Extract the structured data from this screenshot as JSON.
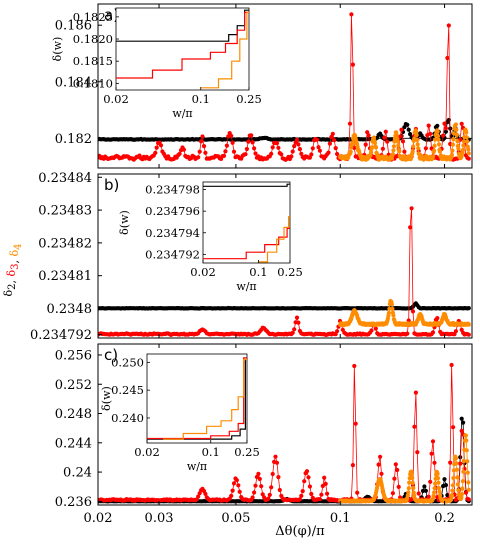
{
  "figure": {
    "xlabel": "Δθ(φ)/π",
    "ylabel_parts": [
      {
        "text": "δ",
        "sub": "2",
        "color": "#000000"
      },
      {
        "text": ", ",
        "sub": "",
        "color": "#000000"
      },
      {
        "text": "δ",
        "sub": "3",
        "color": "#ff0000"
      },
      {
        "text": ", ",
        "sub": "",
        "color": "#000000"
      },
      {
        "text": "δ",
        "sub": "4",
        "color": "#ff8c00"
      }
    ],
    "x_ticks": [
      "0.02",
      "0.03",
      "0.05",
      "0.1",
      "0.2"
    ],
    "colors": {
      "delta2": "#000000",
      "delta3": "#ff0000",
      "delta4": "#ff8c00"
    }
  },
  "chart_data": [
    {
      "panel_label": "a)",
      "type": "scatter",
      "x_scale": "log",
      "xlim": [
        0.02,
        0.24
      ],
      "ylim": [
        0.18095,
        0.18675
      ],
      "y_ticks": [
        "0.186",
        "0.184",
        "0.182"
      ],
      "y_tick_values": [
        0.186,
        0.184,
        0.182
      ],
      "series": [
        {
          "key": "delta2",
          "color": "#000000",
          "start": 0.02,
          "end": 0.235,
          "base": 0.18195,
          "noise": 4e-05,
          "peaks": [
            [
              0.06,
              6e-05,
              0.04
            ],
            [
              0.13,
              0.0002,
              0.02
            ],
            [
              0.155,
              0.00055,
              0.03
            ],
            [
              0.17,
              0.0002,
              0.02
            ],
            [
              0.19,
              0.0005,
              0.02
            ],
            [
              0.205,
              0.0007,
              0.02
            ],
            [
              0.215,
              0.0004,
              0.015
            ]
          ]
        },
        {
          "key": "delta3",
          "color": "#ff0000",
          "start": 0.02,
          "end": 0.235,
          "base": 0.18125,
          "noise": 0.0002,
          "peaks": [
            [
              0.03,
              0.0006,
              0.03
            ],
            [
              0.035,
              0.0004,
              0.02
            ],
            [
              0.04,
              0.0007,
              0.02
            ],
            [
              0.048,
              0.0009,
              0.03
            ],
            [
              0.055,
              0.0008,
              0.03
            ],
            [
              0.065,
              0.0006,
              0.03
            ],
            [
              0.075,
              0.0006,
              0.03
            ],
            [
              0.085,
              0.0007,
              0.03
            ],
            [
              0.095,
              0.0008,
              0.03
            ],
            [
              0.108,
              0.0055,
              0.012
            ],
            [
              0.12,
              0.0009,
              0.02
            ],
            [
              0.135,
              0.0009,
              0.02
            ],
            [
              0.15,
              0.001,
              0.02
            ],
            [
              0.165,
              0.001,
              0.02
            ],
            [
              0.18,
              0.0012,
              0.02
            ],
            [
              0.2,
              0.0012,
              0.02
            ],
            [
              0.205,
              0.0055,
              0.01
            ],
            [
              0.225,
              0.0012,
              0.02
            ]
          ]
        },
        {
          "key": "delta4",
          "color": "#ff8c00",
          "start": 0.1,
          "end": 0.235,
          "base": 0.18125,
          "noise": 0.00018,
          "peaks": [
            [
              0.11,
              0.0008,
              0.03
            ],
            [
              0.125,
              0.0007,
              0.02
            ],
            [
              0.145,
              0.0009,
              0.02
            ],
            [
              0.165,
              0.001,
              0.02
            ],
            [
              0.19,
              0.001,
              0.02
            ],
            [
              0.215,
              0.0012,
              0.02
            ],
            [
              0.23,
              0.001,
              0.02
            ]
          ]
        }
      ],
      "inset": {
        "ylabel": "δ(w)",
        "xlabel": "w/π",
        "x_ticks": [
          "0.02",
          "0.1",
          "0.25"
        ],
        "y_ticks": [
          "0.1825",
          "0.1820",
          "0.1815",
          "0.1810"
        ],
        "y_tick_values": [
          0.1825,
          0.182,
          0.1815,
          0.181
        ],
        "xlim": [
          0.02,
          0.25
        ],
        "ylim": [
          0.18085,
          0.1827
        ],
        "lines": [
          {
            "key": "delta2",
            "color": "#000000",
            "points": [
              [
                0.02,
                0.18195
              ],
              [
                0.17,
                0.18195
              ],
              [
                0.17,
                0.1821
              ],
              [
                0.2,
                0.1821
              ],
              [
                0.2,
                0.1823
              ],
              [
                0.23,
                0.1823
              ],
              [
                0.23,
                0.18265
              ],
              [
                0.25,
                0.18265
              ]
            ]
          },
          {
            "key": "delta3",
            "color": "#ff0000",
            "points": [
              [
                0.02,
                0.18112
              ],
              [
                0.04,
                0.18112
              ],
              [
                0.04,
                0.1813
              ],
              [
                0.07,
                0.1813
              ],
              [
                0.07,
                0.18155
              ],
              [
                0.12,
                0.18155
              ],
              [
                0.12,
                0.1817
              ],
              [
                0.16,
                0.1817
              ],
              [
                0.16,
                0.1819
              ],
              [
                0.2,
                0.1819
              ],
              [
                0.2,
                0.1822
              ],
              [
                0.23,
                0.1822
              ],
              [
                0.23,
                0.1826
              ],
              [
                0.25,
                0.1826
              ]
            ]
          },
          {
            "key": "delta4",
            "color": "#ff8c00",
            "points": [
              [
                0.1,
                0.1809
              ],
              [
                0.14,
                0.1809
              ],
              [
                0.14,
                0.1811
              ],
              [
                0.18,
                0.1811
              ],
              [
                0.18,
                0.1815
              ],
              [
                0.21,
                0.1815
              ],
              [
                0.21,
                0.182
              ],
              [
                0.24,
                0.182
              ],
              [
                0.24,
                0.1826
              ],
              [
                0.25,
                0.1826
              ]
            ]
          }
        ]
      }
    },
    {
      "panel_label": "b)",
      "type": "scatter",
      "x_scale": "log",
      "xlim": [
        0.02,
        0.24
      ],
      "ylim": [
        0.234791,
        0.234841
      ],
      "y_ticks": [
        "0.23484",
        "0.23483",
        "0.23482",
        "0.23481",
        "0.2348",
        "0.234792"
      ],
      "y_tick_values": [
        0.23484,
        0.23483,
        0.23482,
        0.23481,
        0.2348,
        0.234792
      ],
      "series": [
        {
          "key": "delta2",
          "color": "#000000",
          "start": 0.02,
          "end": 0.235,
          "base": 0.2348,
          "noise": 2e-07,
          "peaks": [
            [
              0.165,
              1.5e-06,
              0.02
            ]
          ]
        },
        {
          "key": "delta3",
          "color": "#ff0000",
          "start": 0.02,
          "end": 0.235,
          "base": 0.234792,
          "noise": 6e-07,
          "peaks": [
            [
              0.04,
              1.5e-06,
              0.03
            ],
            [
              0.06,
              2e-06,
              0.03
            ],
            [
              0.075,
              5e-06,
              0.02
            ],
            [
              0.1,
              4e-06,
              0.02
            ],
            [
              0.125,
              3e-06,
              0.02
            ],
            [
              0.16,
              4.5e-05,
              0.012
            ],
            [
              0.19,
              5e-06,
              0.02
            ],
            [
              0.22,
              4e-06,
              0.02
            ]
          ]
        },
        {
          "key": "delta4",
          "color": "#ff8c00",
          "start": 0.1,
          "end": 0.235,
          "base": 0.234795,
          "noise": 8e-07,
          "peaks": [
            [
              0.11,
              4e-06,
              0.03
            ],
            [
              0.14,
              7e-06,
              0.02
            ],
            [
              0.17,
              3e-06,
              0.02
            ],
            [
              0.2,
              3e-06,
              0.02
            ]
          ]
        }
      ],
      "inset": {
        "ylabel": "δ(w)",
        "xlabel": "w/π",
        "x_ticks": [
          "0.02",
          "0.1",
          "0.25"
        ],
        "y_ticks": [
          "0.234798",
          "0.234796",
          "0.234794",
          "0.234792"
        ],
        "y_tick_values": [
          0.234798,
          0.234796,
          0.234794,
          0.234792
        ],
        "xlim": [
          0.02,
          0.25
        ],
        "ylim": [
          0.2347912,
          0.2347987
        ],
        "lines": [
          {
            "key": "delta2",
            "color": "#000000",
            "points": [
              [
                0.02,
                0.2347983
              ],
              [
                0.23,
                0.2347983
              ],
              [
                0.23,
                0.2347985
              ],
              [
                0.25,
                0.2347985
              ]
            ]
          },
          {
            "key": "delta3",
            "color": "#ff0000",
            "points": [
              [
                0.02,
                0.2347916
              ],
              [
                0.07,
                0.2347916
              ],
              [
                0.07,
                0.2347922
              ],
              [
                0.12,
                0.2347922
              ],
              [
                0.12,
                0.2347929
              ],
              [
                0.18,
                0.2347929
              ],
              [
                0.18,
                0.2347936
              ],
              [
                0.23,
                0.2347936
              ],
              [
                0.23,
                0.2347944
              ],
              [
                0.25,
                0.2347944
              ]
            ]
          },
          {
            "key": "delta4",
            "color": "#ff8c00",
            "points": [
              [
                0.1,
                0.2347913
              ],
              [
                0.13,
                0.2347913
              ],
              [
                0.13,
                0.2347922
              ],
              [
                0.17,
                0.2347922
              ],
              [
                0.17,
                0.2347934
              ],
              [
                0.21,
                0.2347934
              ],
              [
                0.21,
                0.2347945
              ],
              [
                0.24,
                0.2347945
              ],
              [
                0.24,
                0.2347955
              ],
              [
                0.25,
                0.2347955
              ]
            ]
          }
        ]
      }
    },
    {
      "panel_label": "c)",
      "type": "scatter",
      "x_scale": "log",
      "xlim": [
        0.02,
        0.24
      ],
      "ylim": [
        0.2355,
        0.2575
      ],
      "y_ticks": [
        "0.256",
        "0.252",
        "0.248",
        "0.244",
        "0.24",
        "0.236"
      ],
      "y_tick_values": [
        0.256,
        0.252,
        0.248,
        0.244,
        0.24,
        0.236
      ],
      "series": [
        {
          "key": "delta2",
          "color": "#000000",
          "start": 0.02,
          "end": 0.235,
          "base": 0.236,
          "noise": 5e-05,
          "peaks": [
            [
              0.07,
              0.0003,
              0.03
            ],
            [
              0.12,
              0.0006,
              0.03
            ],
            [
              0.155,
              0.001,
              0.02
            ],
            [
              0.175,
              0.002,
              0.02
            ],
            [
              0.2,
              0.003,
              0.02
            ],
            [
              0.225,
              0.012,
              0.02
            ]
          ]
        },
        {
          "key": "delta3",
          "color": "#ff0000",
          "start": 0.02,
          "end": 0.235,
          "base": 0.2361,
          "noise": 0.0003,
          "peaks": [
            [
              0.04,
              0.0015,
              0.03
            ],
            [
              0.05,
              0.003,
              0.03
            ],
            [
              0.058,
              0.0035,
              0.03
            ],
            [
              0.065,
              0.006,
              0.03
            ],
            [
              0.08,
              0.004,
              0.03
            ],
            [
              0.09,
              0.003,
              0.02
            ],
            [
              0.11,
              0.019,
              0.012
            ],
            [
              0.13,
              0.006,
              0.02
            ],
            [
              0.145,
              0.005,
              0.02
            ],
            [
              0.165,
              0.015,
              0.015
            ],
            [
              0.185,
              0.008,
              0.02
            ],
            [
              0.21,
              0.019,
              0.012
            ],
            [
              0.225,
              0.01,
              0.02
            ]
          ]
        },
        {
          "key": "delta4",
          "color": "#ff8c00",
          "start": 0.1,
          "end": 0.235,
          "base": 0.236,
          "noise": 0.0002,
          "peaks": [
            [
              0.13,
              0.003,
              0.03
            ],
            [
              0.16,
              0.004,
              0.02
            ],
            [
              0.19,
              0.004,
              0.02
            ],
            [
              0.215,
              0.006,
              0.02
            ],
            [
              0.23,
              0.009,
              0.02
            ]
          ]
        }
      ],
      "inset": {
        "ylabel": "δ(w)",
        "xlabel": "w/π",
        "x_ticks": [
          "0.02",
          "0.1",
          "0.25"
        ],
        "y_ticks": [
          "0.250",
          "0.245",
          "0.240"
        ],
        "y_tick_values": [
          0.25,
          0.245,
          0.24
        ],
        "xlim": [
          0.02,
          0.25
        ],
        "ylim": [
          0.2355,
          0.2515
        ],
        "lines": [
          {
            "key": "delta2",
            "color": "#000000",
            "points": [
              [
                0.02,
                0.2362
              ],
              [
                0.17,
                0.2362
              ],
              [
                0.17,
                0.2368
              ],
              [
                0.21,
                0.2368
              ],
              [
                0.21,
                0.238
              ],
              [
                0.24,
                0.238
              ],
              [
                0.24,
                0.2505
              ],
              [
                0.25,
                0.2505
              ]
            ]
          },
          {
            "key": "delta3",
            "color": "#ff0000",
            "points": [
              [
                0.02,
                0.2363
              ],
              [
                0.1,
                0.2363
              ],
              [
                0.1,
                0.2368
              ],
              [
                0.16,
                0.2368
              ],
              [
                0.16,
                0.2376
              ],
              [
                0.2,
                0.2376
              ],
              [
                0.2,
                0.239
              ],
              [
                0.23,
                0.239
              ],
              [
                0.23,
                0.2508
              ],
              [
                0.25,
                0.2508
              ]
            ]
          },
          {
            "key": "delta4",
            "color": "#ff8c00",
            "points": [
              [
                0.03,
                0.2362
              ],
              [
                0.05,
                0.2362
              ],
              [
                0.05,
                0.2372
              ],
              [
                0.09,
                0.2372
              ],
              [
                0.09,
                0.2385
              ],
              [
                0.13,
                0.2385
              ],
              [
                0.13,
                0.2395
              ],
              [
                0.17,
                0.2395
              ],
              [
                0.17,
                0.2415
              ],
              [
                0.2,
                0.2415
              ],
              [
                0.2,
                0.2438
              ],
              [
                0.23,
                0.2438
              ],
              [
                0.23,
                0.2505
              ],
              [
                0.25,
                0.2505
              ]
            ]
          }
        ]
      }
    }
  ]
}
